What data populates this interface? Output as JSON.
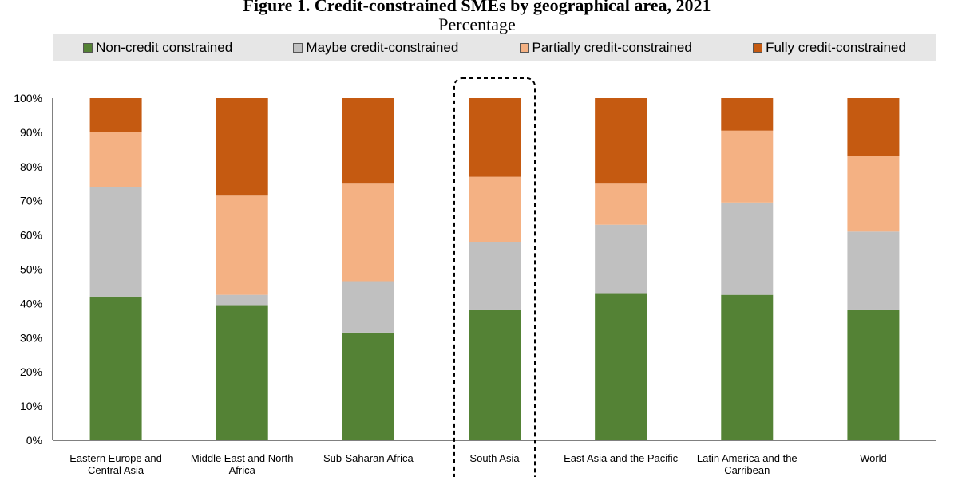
{
  "chart_data": {
    "type": "bar",
    "stacked": true,
    "title": "Figure 1. Credit-constrained SMEs by geographical area, 2021",
    "subtitle": "Percentage",
    "categories": [
      [
        "Eastern Europe and",
        "Central Asia"
      ],
      [
        "Middle East and North",
        "Africa"
      ],
      [
        "Sub-Saharan Africa"
      ],
      [
        "South Asia"
      ],
      [
        "East Asia and the Pacific"
      ],
      [
        "Latin America and the",
        "Carribean"
      ],
      [
        "World"
      ]
    ],
    "series": [
      {
        "name": "Non-credit constrained",
        "color": "#548235",
        "values": [
          42,
          39.5,
          31.5,
          38,
          43,
          42.5,
          38
        ]
      },
      {
        "name": "Maybe credit-constrained",
        "color": "#c0c0c0",
        "values": [
          32,
          3,
          15,
          20,
          20,
          27,
          23
        ]
      },
      {
        "name": "Partially credit-constrained",
        "color": "#f4b183",
        "values": [
          16,
          29,
          28.5,
          19,
          12,
          21,
          22
        ]
      },
      {
        "name": "Fully credit-constrained",
        "color": "#c55a11",
        "values": [
          10,
          28.5,
          25,
          23,
          25,
          9.5,
          17
        ]
      }
    ],
    "ylim": [
      0,
      100
    ],
    "yticks": [
      "0%",
      "10%",
      "20%",
      "30%",
      "40%",
      "50%",
      "60%",
      "70%",
      "80%",
      "90%",
      "100%"
    ],
    "highlight": "South Asia",
    "legend_position": "top"
  }
}
